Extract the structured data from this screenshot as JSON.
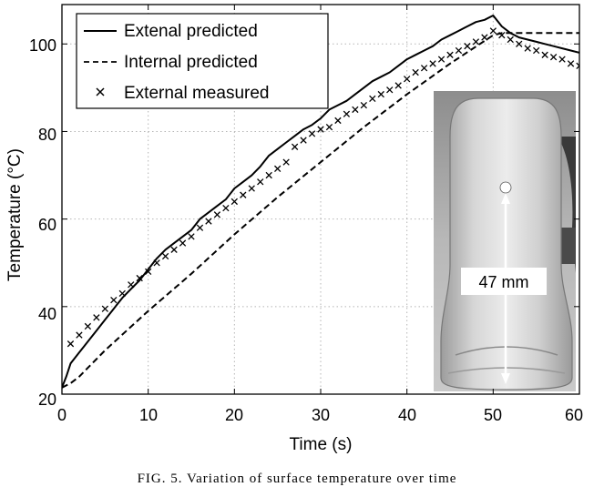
{
  "chart_data": {
    "type": "line",
    "xlabel": "Time (s)",
    "ylabel": "Temperature (°C)",
    "xlim": [
      0,
      60
    ],
    "ylim": [
      20,
      109
    ],
    "x_ticks": [
      "0",
      "10",
      "20",
      "30",
      "40",
      "50",
      "60"
    ],
    "y_ticks": [
      "20",
      "40",
      "60",
      "80",
      "100"
    ],
    "grid": true,
    "legend_position": "top-left",
    "series": [
      {
        "name": "Extenal predicted",
        "style": "solid",
        "color": "#000000",
        "x": [
          0,
          0.5,
          1,
          2,
          3,
          4,
          5,
          6,
          7,
          8,
          9,
          10,
          11,
          12,
          13,
          14,
          15,
          16,
          17,
          18,
          19,
          20,
          21,
          22,
          23,
          24,
          25,
          26,
          27,
          28,
          29,
          30,
          31,
          32,
          33,
          34,
          35,
          36,
          37,
          38,
          39,
          40,
          41,
          42,
          43,
          44,
          45,
          46,
          47,
          48,
          49,
          50,
          51,
          52,
          53,
          54,
          55,
          56,
          57,
          58,
          59,
          60
        ],
        "y": [
          21.5,
          24,
          27,
          29.5,
          32,
          34.5,
          37,
          39.5,
          42,
          44,
          46,
          48.5,
          51,
          53,
          54.5,
          56,
          57.5,
          60,
          61.5,
          63,
          64.5,
          67,
          68.5,
          70,
          72,
          74.5,
          76,
          77.5,
          79,
          80.5,
          81.5,
          83,
          85,
          86,
          87,
          88.5,
          90,
          91.5,
          92.5,
          93.5,
          95,
          96.5,
          97.5,
          98.5,
          99.5,
          101,
          102,
          103,
          104,
          105,
          105.5,
          106.5,
          104,
          102.5,
          101.5,
          101,
          100.5,
          100,
          99.5,
          99,
          98.5,
          98
        ]
      },
      {
        "name": "Internal predicted",
        "style": "dashed",
        "color": "#000000",
        "x": [
          0,
          1,
          2,
          3,
          4,
          5,
          10,
          15,
          20,
          25,
          30,
          35,
          40,
          45,
          50,
          51,
          52,
          54,
          56,
          58,
          60
        ],
        "y": [
          21.5,
          22.5,
          24,
          26,
          28,
          30,
          39,
          47.5,
          56.5,
          65,
          73,
          81,
          88.5,
          95.5,
          102,
          102.5,
          102.5,
          102.5,
          102.5,
          102.5,
          102.5
        ]
      },
      {
        "name": "External measured",
        "style": "markers",
        "marker": "x",
        "color": "#000000",
        "x": [
          1,
          2,
          3,
          4,
          5,
          6,
          7,
          8,
          9,
          10,
          11,
          12,
          13,
          14,
          15,
          16,
          17,
          18,
          19,
          20,
          21,
          22,
          23,
          24,
          25,
          26,
          27,
          28,
          29,
          30,
          31,
          32,
          33,
          34,
          35,
          36,
          37,
          38,
          39,
          40,
          41,
          42,
          43,
          44,
          45,
          46,
          47,
          48,
          49,
          50,
          51,
          52,
          53,
          54,
          55,
          56,
          57,
          58,
          59,
          60
        ],
        "y": [
          31.5,
          33.5,
          35.5,
          37.5,
          39.5,
          41.5,
          43,
          45,
          46.5,
          48,
          50,
          51.5,
          53,
          54.5,
          56,
          58,
          59.5,
          61,
          62.5,
          64,
          65.5,
          67,
          68.5,
          70,
          71.5,
          73,
          76.5,
          78,
          79.5,
          80.5,
          81,
          82.5,
          84,
          85,
          86,
          87.5,
          88.5,
          89.5,
          90.5,
          92,
          93.5,
          94.5,
          95.5,
          96.5,
          97.5,
          98.5,
          99.5,
          100.5,
          101.5,
          103,
          102,
          101,
          100,
          99,
          98.5,
          97.5,
          97,
          96.5,
          95.5,
          95
        ]
      }
    ],
    "inset": {
      "label": "47 mm"
    }
  },
  "caption": {
    "text": "FIG. 5.   Variation of surface temperature over time"
  }
}
